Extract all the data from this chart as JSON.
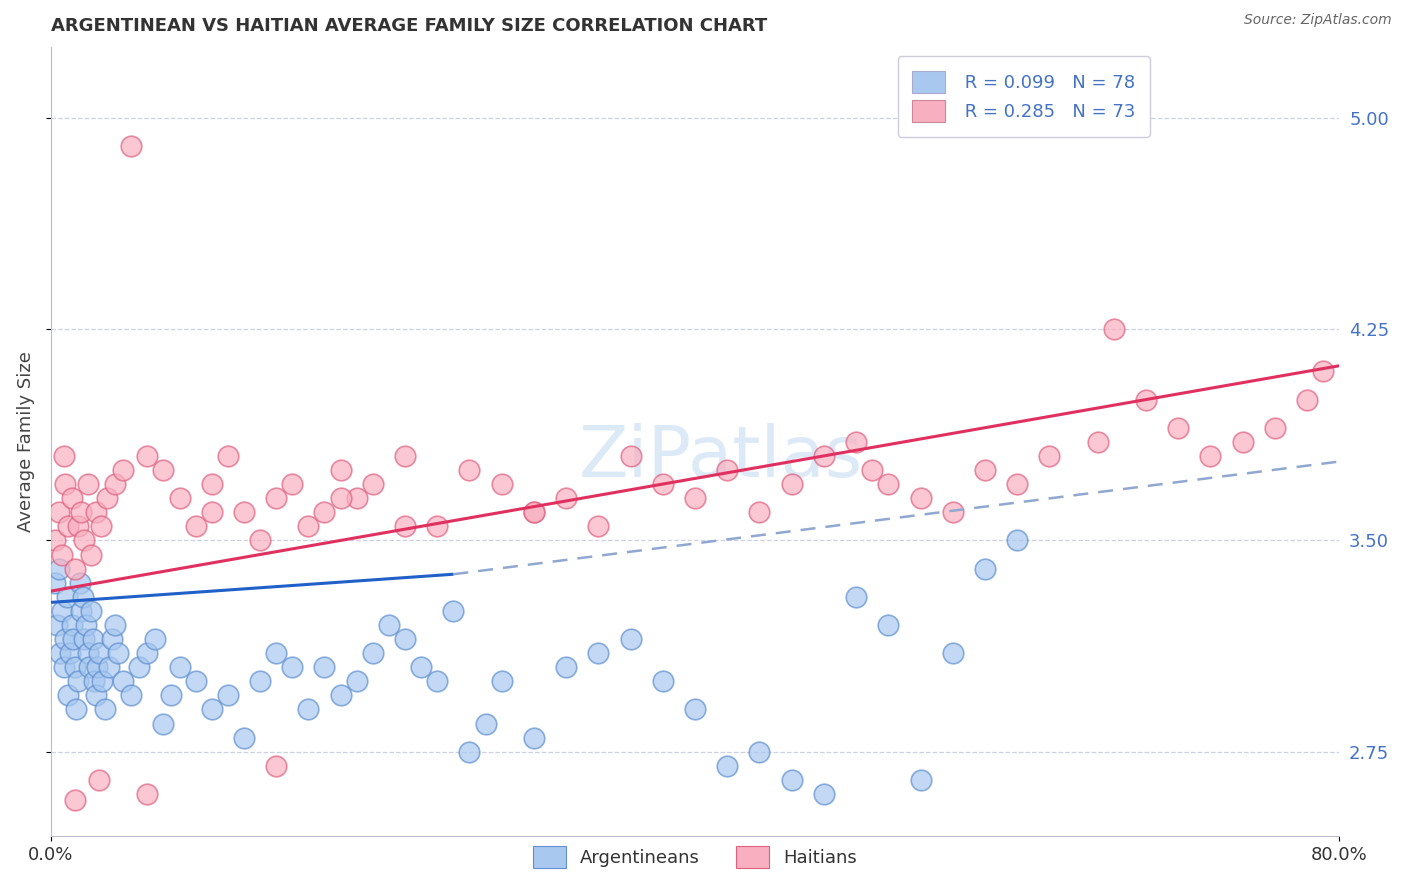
{
  "title": "ARGENTINEAN VS HAITIAN AVERAGE FAMILY SIZE CORRELATION CHART",
  "source_text": "Source: ZipAtlas.com",
  "ylabel": "Average Family Size",
  "yticks": [
    2.75,
    3.5,
    4.25,
    5.0
  ],
  "xlim": [
    0.0,
    80.0
  ],
  "ylim": [
    2.45,
    5.25
  ],
  "argentinean_color": "#a8c8f0",
  "argentinean_edge": "#6090d0",
  "haitian_color": "#f8b0c0",
  "haitian_edge": "#e06080",
  "trend_blue_color": "#2060c8",
  "trend_pink_color": "#e03060",
  "trend_dashed_color": "#90a8d0",
  "legend_color1": "#a8c8f0",
  "legend_color2": "#f8b0c0",
  "legend_r1": "R = 0.099",
  "legend_n1": "N = 78",
  "legend_r2": "R = 0.285",
  "legend_n2": "N = 73",
  "watermark": "ZiPatlas",
  "blue_line_x": [
    0,
    25
  ],
  "blue_line_y": [
    3.28,
    3.38
  ],
  "dashed_line_x": [
    25,
    80
  ],
  "dashed_line_y": [
    3.38,
    3.78
  ],
  "pink_line_x": [
    0,
    80
  ],
  "pink_line_y": [
    3.32,
    4.12
  ],
  "arg_x": [
    0.3,
    0.4,
    0.5,
    0.6,
    0.7,
    0.8,
    0.9,
    1.0,
    1.1,
    1.2,
    1.3,
    1.4,
    1.5,
    1.6,
    1.7,
    1.8,
    1.9,
    2.0,
    2.1,
    2.2,
    2.3,
    2.4,
    2.5,
    2.6,
    2.7,
    2.8,
    2.9,
    3.0,
    3.2,
    3.4,
    3.6,
    3.8,
    4.0,
    4.2,
    4.5,
    5.0,
    5.5,
    6.0,
    6.5,
    7.0,
    7.5,
    8.0,
    9.0,
    10.0,
    11.0,
    12.0,
    13.0,
    14.0,
    15.0,
    16.0,
    17.0,
    18.0,
    19.0,
    20.0,
    21.0,
    22.0,
    23.0,
    24.0,
    25.0,
    26.0,
    27.0,
    28.0,
    30.0,
    32.0,
    34.0,
    36.0,
    38.0,
    40.0,
    42.0,
    44.0,
    46.0,
    48.0,
    50.0,
    52.0,
    54.0,
    56.0,
    58.0,
    60.0
  ],
  "arg_y": [
    3.35,
    3.2,
    3.4,
    3.1,
    3.25,
    3.05,
    3.15,
    3.3,
    2.95,
    3.1,
    3.2,
    3.15,
    3.05,
    2.9,
    3.0,
    3.35,
    3.25,
    3.3,
    3.15,
    3.2,
    3.1,
    3.05,
    3.25,
    3.15,
    3.0,
    2.95,
    3.05,
    3.1,
    3.0,
    2.9,
    3.05,
    3.15,
    3.2,
    3.1,
    3.0,
    2.95,
    3.05,
    3.1,
    3.15,
    2.85,
    2.95,
    3.05,
    3.0,
    2.9,
    2.95,
    2.8,
    3.0,
    3.1,
    3.05,
    2.9,
    3.05,
    2.95,
    3.0,
    3.1,
    3.2,
    3.15,
    3.05,
    3.0,
    3.25,
    2.75,
    2.85,
    3.0,
    2.8,
    3.05,
    3.1,
    3.15,
    3.0,
    2.9,
    2.7,
    2.75,
    2.65,
    2.6,
    3.3,
    3.2,
    2.65,
    3.1,
    3.4,
    3.5
  ],
  "hai_x": [
    0.3,
    0.5,
    0.7,
    0.9,
    1.1,
    1.3,
    1.5,
    1.7,
    1.9,
    2.1,
    2.3,
    2.5,
    2.8,
    3.1,
    3.5,
    4.0,
    4.5,
    5.0,
    6.0,
    7.0,
    8.0,
    9.0,
    10.0,
    11.0,
    12.0,
    13.0,
    14.0,
    15.0,
    16.0,
    17.0,
    18.0,
    19.0,
    20.0,
    22.0,
    24.0,
    26.0,
    28.0,
    30.0,
    32.0,
    34.0,
    36.0,
    38.0,
    40.0,
    42.0,
    44.0,
    46.0,
    48.0,
    50.0,
    52.0,
    54.0,
    56.0,
    58.0,
    60.0,
    62.0,
    65.0,
    68.0,
    70.0,
    72.0,
    74.0,
    76.0,
    78.0,
    79.0,
    66.0,
    51.0,
    30.0,
    22.0,
    18.0,
    14.0,
    10.0,
    6.0,
    3.0,
    1.5,
    0.8
  ],
  "hai_y": [
    3.5,
    3.6,
    3.45,
    3.7,
    3.55,
    3.65,
    3.4,
    3.55,
    3.6,
    3.5,
    3.7,
    3.45,
    3.6,
    3.55,
    3.65,
    3.7,
    3.75,
    4.9,
    3.8,
    3.75,
    3.65,
    3.55,
    3.7,
    3.8,
    3.6,
    3.5,
    3.65,
    3.7,
    3.55,
    3.6,
    3.75,
    3.65,
    3.7,
    3.8,
    3.55,
    3.75,
    3.7,
    3.6,
    3.65,
    3.55,
    3.8,
    3.7,
    3.65,
    3.75,
    3.6,
    3.7,
    3.8,
    3.85,
    3.7,
    3.65,
    3.6,
    3.75,
    3.7,
    3.8,
    3.85,
    4.0,
    3.9,
    3.8,
    3.85,
    3.9,
    4.0,
    4.1,
    4.25,
    3.75,
    3.6,
    3.55,
    3.65,
    2.7,
    3.6,
    2.6,
    2.65,
    2.58,
    3.8
  ]
}
